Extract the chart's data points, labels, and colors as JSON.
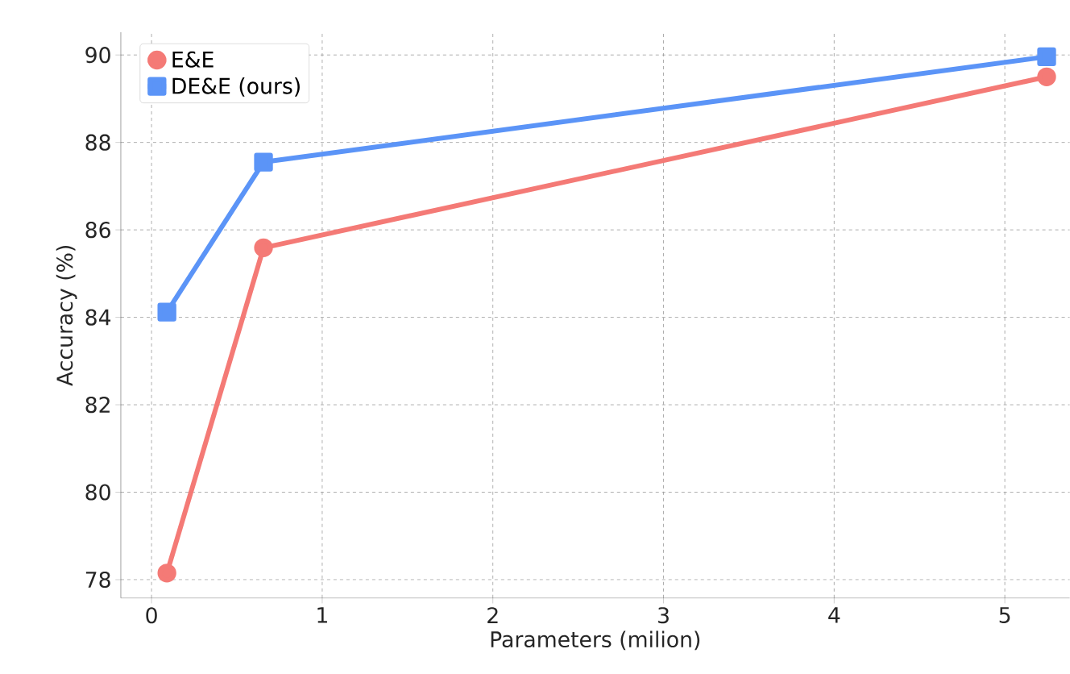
{
  "chart_data": {
    "type": "line",
    "xlabel": "Parameters (milion)",
    "ylabel": "Accuracy (%)",
    "series": [
      {
        "name": "E&E",
        "color": "#f47a76",
        "marker": "circle",
        "x": [
          0.09,
          0.656,
          5.245
        ],
        "values": [
          78.15,
          85.59,
          89.5
        ]
      },
      {
        "name": "DE&E (ours)",
        "color": "#5b94f7",
        "marker": "square",
        "x": [
          0.09,
          0.656,
          5.245
        ],
        "values": [
          84.12,
          87.55,
          89.96
        ]
      }
    ],
    "xlim": [
      -0.18,
      5.38
    ],
    "ylim": [
      77.58,
      90.52
    ],
    "xticks": [
      0,
      1,
      2,
      3,
      4,
      5
    ],
    "yticks": [
      78,
      80,
      82,
      84,
      86,
      88,
      90
    ],
    "grid": true,
    "legend": "top left",
    "line_style": "solid"
  }
}
